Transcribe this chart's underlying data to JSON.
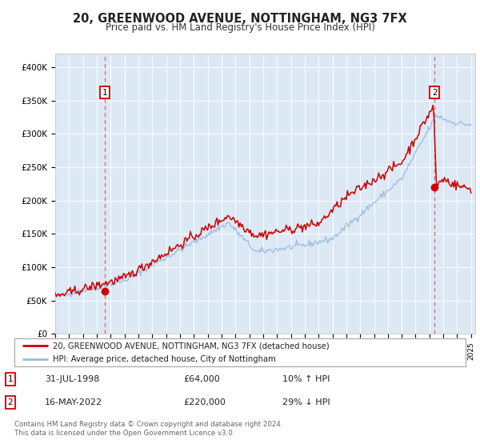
{
  "title": "20, GREENWOOD AVENUE, NOTTINGHAM, NG3 7FX",
  "subtitle": "Price paid vs. HM Land Registry's House Price Index (HPI)",
  "plot_bg_color": "#dce9f5",
  "ylim": [
    0,
    420000
  ],
  "yticks": [
    0,
    50000,
    100000,
    150000,
    200000,
    250000,
    300000,
    350000,
    400000
  ],
  "ytick_labels": [
    "£0",
    "£50K",
    "£100K",
    "£150K",
    "£200K",
    "£250K",
    "£300K",
    "£350K",
    "£400K"
  ],
  "sale1_year": 1998.58,
  "sale1_price": 64000,
  "sale2_year": 2022.37,
  "sale2_price": 220000,
  "legend_line1": "20, GREENWOOD AVENUE, NOTTINGHAM, NG3 7FX (detached house)",
  "legend_line2": "HPI: Average price, detached house, City of Nottingham",
  "note1_label": "1",
  "note1_date": "31-JUL-1998",
  "note1_price": "£64,000",
  "note1_hpi": "10% ↑ HPI",
  "note2_label": "2",
  "note2_date": "16-MAY-2022",
  "note2_price": "£220,000",
  "note2_hpi": "29% ↓ HPI",
  "footer": "Contains HM Land Registry data © Crown copyright and database right 2024.\nThis data is licensed under the Open Government Licence v3.0.",
  "red_line_color": "#cc0000",
  "blue_line_color": "#99bbdd",
  "sale_dot_color": "#cc0000",
  "vline_color": "#dd4444"
}
